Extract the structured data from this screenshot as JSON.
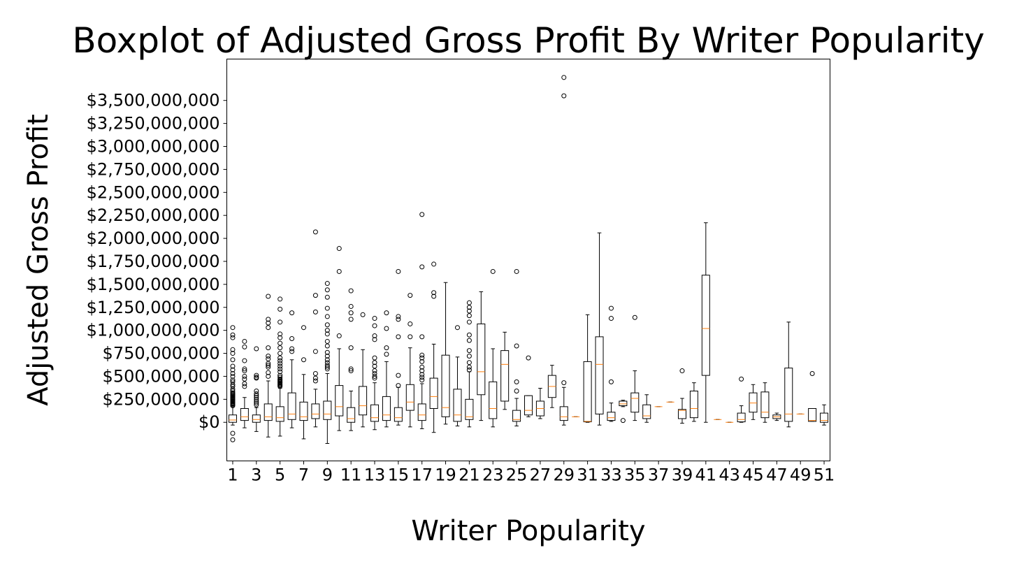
{
  "chart_data": {
    "type": "boxplot",
    "title": "Boxplot of Adjusted Gross Profit By Writer Popularity",
    "xlabel": "Writer Popularity",
    "ylabel": "Adjusted Gross Profit",
    "xlim": [
      0.5,
      51.5
    ],
    "ylim": [
      -420000000,
      3950000000
    ],
    "yticks": [
      0,
      250000000,
      500000000,
      750000000,
      1000000000,
      1250000000,
      1500000000,
      1750000000,
      2000000000,
      2250000000,
      2500000000,
      2750000000,
      3000000000,
      3250000000,
      3500000000
    ],
    "ytick_labels": [
      "$0",
      "$250,000,000",
      "$500,000,000",
      "$750,000,000",
      "$1,000,000,000",
      "$1,250,000,000",
      "$1,500,000,000",
      "$1,750,000,000",
      "$2,000,000,000",
      "$2,250,000,000",
      "$2,500,000,000",
      "$2,750,000,000",
      "$3,000,000,000",
      "$3,250,000,000",
      "$3,500,000,000"
    ],
    "xticks": [
      1,
      3,
      5,
      7,
      9,
      11,
      13,
      15,
      17,
      19,
      21,
      23,
      25,
      27,
      29,
      31,
      33,
      35,
      37,
      39,
      41,
      43,
      45,
      47,
      49,
      51
    ],
    "xtick_labels": [
      "1",
      "3",
      "5",
      "7",
      "9",
      "11",
      "13",
      "15",
      "17",
      "19",
      "21",
      "23",
      "25",
      "27",
      "29",
      "31",
      "33",
      "35",
      "37",
      "39",
      "41",
      "43",
      "45",
      "47",
      "49",
      "51"
    ],
    "boxes": [
      {
        "x": 1,
        "whislo": -30000000,
        "q1": 0,
        "med": 25000000,
        "q3": 80000000,
        "whishi": 180000000,
        "fliers": [
          -120000000,
          -190000000,
          180000000,
          190000000,
          200000000,
          210000000,
          220000000,
          230000000,
          240000000,
          250000000,
          260000000,
          270000000,
          280000000,
          290000000,
          300000000,
          310000000,
          320000000,
          340000000,
          360000000,
          390000000,
          410000000,
          440000000,
          460000000,
          500000000,
          530000000,
          570000000,
          610000000,
          680000000,
          750000000,
          790000000,
          920000000,
          950000000,
          1030000000
        ]
      },
      {
        "x": 2,
        "whislo": -60000000,
        "q1": 20000000,
        "med": 60000000,
        "q3": 150000000,
        "whishi": 270000000,
        "fliers": [
          390000000,
          420000000,
          470000000,
          500000000,
          560000000,
          580000000,
          670000000,
          820000000,
          880000000
        ]
      },
      {
        "x": 3,
        "whislo": -100000000,
        "q1": 0,
        "med": 30000000,
        "q3": 80000000,
        "whishi": 160000000,
        "fliers": [
          190000000,
          210000000,
          230000000,
          250000000,
          270000000,
          290000000,
          310000000,
          340000000,
          480000000,
          490000000,
          510000000,
          800000000
        ]
      },
      {
        "x": 4,
        "whislo": -160000000,
        "q1": 20000000,
        "med": 60000000,
        "q3": 200000000,
        "whishi": 450000000,
        "fliers": [
          500000000,
          540000000,
          600000000,
          620000000,
          640000000,
          690000000,
          720000000,
          810000000,
          1030000000,
          1080000000,
          1120000000,
          1370000000
        ]
      },
      {
        "x": 5,
        "whislo": -150000000,
        "q1": 10000000,
        "med": 50000000,
        "q3": 170000000,
        "whishi": 370000000,
        "fliers": [
          390000000,
          400000000,
          410000000,
          420000000,
          430000000,
          440000000,
          450000000,
          460000000,
          470000000,
          490000000,
          510000000,
          550000000,
          580000000,
          610000000,
          640000000,
          670000000,
          700000000,
          750000000,
          810000000,
          860000000,
          920000000,
          960000000,
          1090000000,
          1230000000,
          1340000000
        ]
      },
      {
        "x": 6,
        "whislo": -60000000,
        "q1": 30000000,
        "med": 90000000,
        "q3": 320000000,
        "whishi": 680000000,
        "fliers": [
          770000000,
          800000000,
          910000000,
          1190000000
        ]
      },
      {
        "x": 7,
        "whislo": -180000000,
        "q1": 20000000,
        "med": 60000000,
        "q3": 220000000,
        "whishi": 520000000,
        "fliers": [
          680000000,
          1030000000
        ]
      },
      {
        "x": 8,
        "whislo": -50000000,
        "q1": 40000000,
        "med": 90000000,
        "q3": 200000000,
        "whishi": 360000000,
        "fliers": [
          450000000,
          480000000,
          530000000,
          770000000,
          1200000000,
          1380000000,
          2070000000
        ]
      },
      {
        "x": 9,
        "whislo": -230000000,
        "q1": 30000000,
        "med": 90000000,
        "q3": 230000000,
        "whishi": 530000000,
        "fliers": [
          580000000,
          600000000,
          620000000,
          650000000,
          680000000,
          720000000,
          760000000,
          830000000,
          880000000,
          960000000,
          1000000000,
          1060000000,
          1150000000,
          1240000000,
          1360000000,
          1440000000,
          1510000000
        ]
      },
      {
        "x": 10,
        "whislo": -90000000,
        "q1": 70000000,
        "med": 170000000,
        "q3": 400000000,
        "whishi": 800000000,
        "fliers": [
          940000000,
          1640000000,
          1890000000
        ]
      },
      {
        "x": 11,
        "whislo": -90000000,
        "q1": 0,
        "med": 40000000,
        "q3": 160000000,
        "whishi": 340000000,
        "fliers": [
          560000000,
          580000000,
          810000000,
          1120000000,
          1190000000,
          1260000000,
          1430000000
        ]
      },
      {
        "x": 12,
        "whislo": -50000000,
        "q1": 80000000,
        "med": 180000000,
        "q3": 390000000,
        "whishi": 790000000,
        "fliers": [
          1170000000
        ]
      },
      {
        "x": 13,
        "whislo": -80000000,
        "q1": 10000000,
        "med": 50000000,
        "q3": 190000000,
        "whishi": 430000000,
        "fliers": [
          480000000,
          500000000,
          530000000,
          560000000,
          610000000,
          650000000,
          700000000,
          900000000,
          940000000,
          1050000000,
          1130000000
        ]
      },
      {
        "x": 14,
        "whislo": -50000000,
        "q1": 20000000,
        "med": 80000000,
        "q3": 280000000,
        "whishi": 660000000,
        "fliers": [
          740000000,
          810000000,
          1020000000,
          1190000000
        ]
      },
      {
        "x": 15,
        "whislo": -30000000,
        "q1": 10000000,
        "med": 50000000,
        "q3": 160000000,
        "whishi": 380000000,
        "fliers": [
          400000000,
          510000000,
          930000000,
          1120000000,
          1150000000,
          1640000000
        ]
      },
      {
        "x": 16,
        "whislo": -50000000,
        "q1": 130000000,
        "med": 220000000,
        "q3": 410000000,
        "whishi": 810000000,
        "fliers": [
          930000000,
          1070000000,
          1380000000
        ]
      },
      {
        "x": 17,
        "whislo": -70000000,
        "q1": 20000000,
        "med": 80000000,
        "q3": 200000000,
        "whishi": 420000000,
        "fliers": [
          460000000,
          490000000,
          520000000,
          560000000,
          600000000,
          660000000,
          700000000,
          730000000,
          930000000,
          1690000000,
          2260000000
        ]
      },
      {
        "x": 18,
        "whislo": -110000000,
        "q1": 150000000,
        "med": 280000000,
        "q3": 480000000,
        "whishi": 850000000,
        "fliers": [
          1370000000,
          1410000000,
          1720000000
        ]
      },
      {
        "x": 19,
        "whislo": -20000000,
        "q1": 60000000,
        "med": 160000000,
        "q3": 730000000,
        "whishi": 1520000000,
        "fliers": []
      },
      {
        "x": 20,
        "whislo": -40000000,
        "q1": 10000000,
        "med": 80000000,
        "q3": 360000000,
        "whishi": 710000000,
        "fliers": [
          1030000000
        ]
      },
      {
        "x": 21,
        "whislo": -50000000,
        "q1": 30000000,
        "med": 60000000,
        "q3": 250000000,
        "whishi": 550000000,
        "fliers": [
          570000000,
          600000000,
          650000000,
          720000000,
          780000000,
          890000000,
          950000000,
          1090000000,
          1160000000,
          1210000000,
          1250000000,
          1300000000
        ]
      },
      {
        "x": 22,
        "whislo": 20000000,
        "q1": 300000000,
        "med": 550000000,
        "q3": 1070000000,
        "whishi": 1420000000,
        "fliers": []
      },
      {
        "x": 23,
        "whislo": -50000000,
        "q1": 40000000,
        "med": 150000000,
        "q3": 440000000,
        "whishi": 800000000,
        "fliers": [
          1640000000
        ]
      },
      {
        "x": 24,
        "whislo": 140000000,
        "q1": 230000000,
        "med": 630000000,
        "q3": 780000000,
        "whishi": 980000000,
        "fliers": []
      },
      {
        "x": 25,
        "whislo": -40000000,
        "q1": 10000000,
        "med": 30000000,
        "q3": 130000000,
        "whishi": 260000000,
        "fliers": [
          340000000,
          440000000,
          830000000,
          1640000000
        ]
      },
      {
        "x": 26,
        "whislo": 60000000,
        "q1": 80000000,
        "med": 130000000,
        "q3": 290000000,
        "whishi": 290000000,
        "fliers": [
          700000000
        ]
      },
      {
        "x": 27,
        "whislo": 40000000,
        "q1": 70000000,
        "med": 150000000,
        "q3": 230000000,
        "whishi": 370000000,
        "fliers": []
      },
      {
        "x": 28,
        "whislo": 160000000,
        "q1": 270000000,
        "med": 390000000,
        "q3": 510000000,
        "whishi": 620000000,
        "fliers": []
      },
      {
        "x": 29,
        "whislo": -30000000,
        "q1": 20000000,
        "med": 60000000,
        "q3": 170000000,
        "whishi": 380000000,
        "fliers": [
          430000000,
          3550000000,
          3750000000
        ]
      },
      {
        "x": 30,
        "whislo": 60000000,
        "q1": 60000000,
        "med": 60000000,
        "q3": 60000000,
        "whishi": 60000000,
        "fliers": []
      },
      {
        "x": 31,
        "whislo": 0,
        "q1": 5000000,
        "med": 10000000,
        "q3": 660000000,
        "whishi": 1170000000,
        "fliers": []
      },
      {
        "x": 32,
        "whislo": -30000000,
        "q1": 90000000,
        "med": 630000000,
        "q3": 930000000,
        "whishi": 2060000000,
        "fliers": []
      },
      {
        "x": 33,
        "whislo": 10000000,
        "q1": 20000000,
        "med": 50000000,
        "q3": 110000000,
        "whishi": 210000000,
        "fliers": [
          440000000,
          1130000000,
          1240000000
        ]
      },
      {
        "x": 34,
        "whislo": 170000000,
        "q1": 180000000,
        "med": 200000000,
        "q3": 230000000,
        "whishi": 240000000,
        "fliers": [
          20000000
        ]
      },
      {
        "x": 35,
        "whislo": 20000000,
        "q1": 110000000,
        "med": 260000000,
        "q3": 320000000,
        "whishi": 560000000,
        "fliers": [
          1140000000
        ]
      },
      {
        "x": 36,
        "whislo": 0,
        "q1": 40000000,
        "med": 70000000,
        "q3": 190000000,
        "whishi": 300000000,
        "fliers": []
      },
      {
        "x": 37,
        "whislo": 170000000,
        "q1": 170000000,
        "med": 170000000,
        "q3": 170000000,
        "whishi": 170000000,
        "fliers": []
      },
      {
        "x": 38,
        "whislo": 220000000,
        "q1": 220000000,
        "med": 220000000,
        "q3": 220000000,
        "whishi": 220000000,
        "fliers": []
      },
      {
        "x": 39,
        "whislo": -10000000,
        "q1": 40000000,
        "med": 130000000,
        "q3": 140000000,
        "whishi": 260000000,
        "fliers": [
          560000000
        ]
      },
      {
        "x": 40,
        "whislo": 10000000,
        "q1": 50000000,
        "med": 150000000,
        "q3": 340000000,
        "whishi": 430000000,
        "fliers": []
      },
      {
        "x": 41,
        "whislo": 0,
        "q1": 510000000,
        "med": 1020000000,
        "q3": 1600000000,
        "whishi": 2170000000,
        "fliers": []
      },
      {
        "x": 42,
        "whislo": 30000000,
        "q1": 30000000,
        "med": 30000000,
        "q3": 30000000,
        "whishi": 30000000,
        "fliers": []
      },
      {
        "x": 43,
        "whislo": 0,
        "q1": 0,
        "med": 0,
        "q3": 0,
        "whishi": 0,
        "fliers": []
      },
      {
        "x": 44,
        "whislo": 0,
        "q1": 5000000,
        "med": 30000000,
        "q3": 100000000,
        "whishi": 180000000,
        "fliers": [
          470000000
        ]
      },
      {
        "x": 45,
        "whislo": 30000000,
        "q1": 110000000,
        "med": 210000000,
        "q3": 320000000,
        "whishi": 410000000,
        "fliers": []
      },
      {
        "x": 46,
        "whislo": 0,
        "q1": 50000000,
        "med": 110000000,
        "q3": 330000000,
        "whishi": 430000000,
        "fliers": []
      },
      {
        "x": 47,
        "whislo": 20000000,
        "q1": 40000000,
        "med": 60000000,
        "q3": 80000000,
        "whishi": 100000000,
        "fliers": []
      },
      {
        "x": 48,
        "whislo": -50000000,
        "q1": 10000000,
        "med": 90000000,
        "q3": 590000000,
        "whishi": 1090000000,
        "fliers": []
      },
      {
        "x": 49,
        "whislo": 90000000,
        "q1": 90000000,
        "med": 90000000,
        "q3": 90000000,
        "whishi": 90000000,
        "fliers": []
      },
      {
        "x": 50,
        "whislo": 10000000,
        "q1": 10000000,
        "med": 20000000,
        "q3": 150000000,
        "whishi": 150000000,
        "fliers": [
          530000000
        ]
      },
      {
        "x": 51,
        "whislo": -30000000,
        "q1": 0,
        "med": 20000000,
        "q3": 100000000,
        "whishi": 190000000,
        "fliers": []
      }
    ]
  }
}
